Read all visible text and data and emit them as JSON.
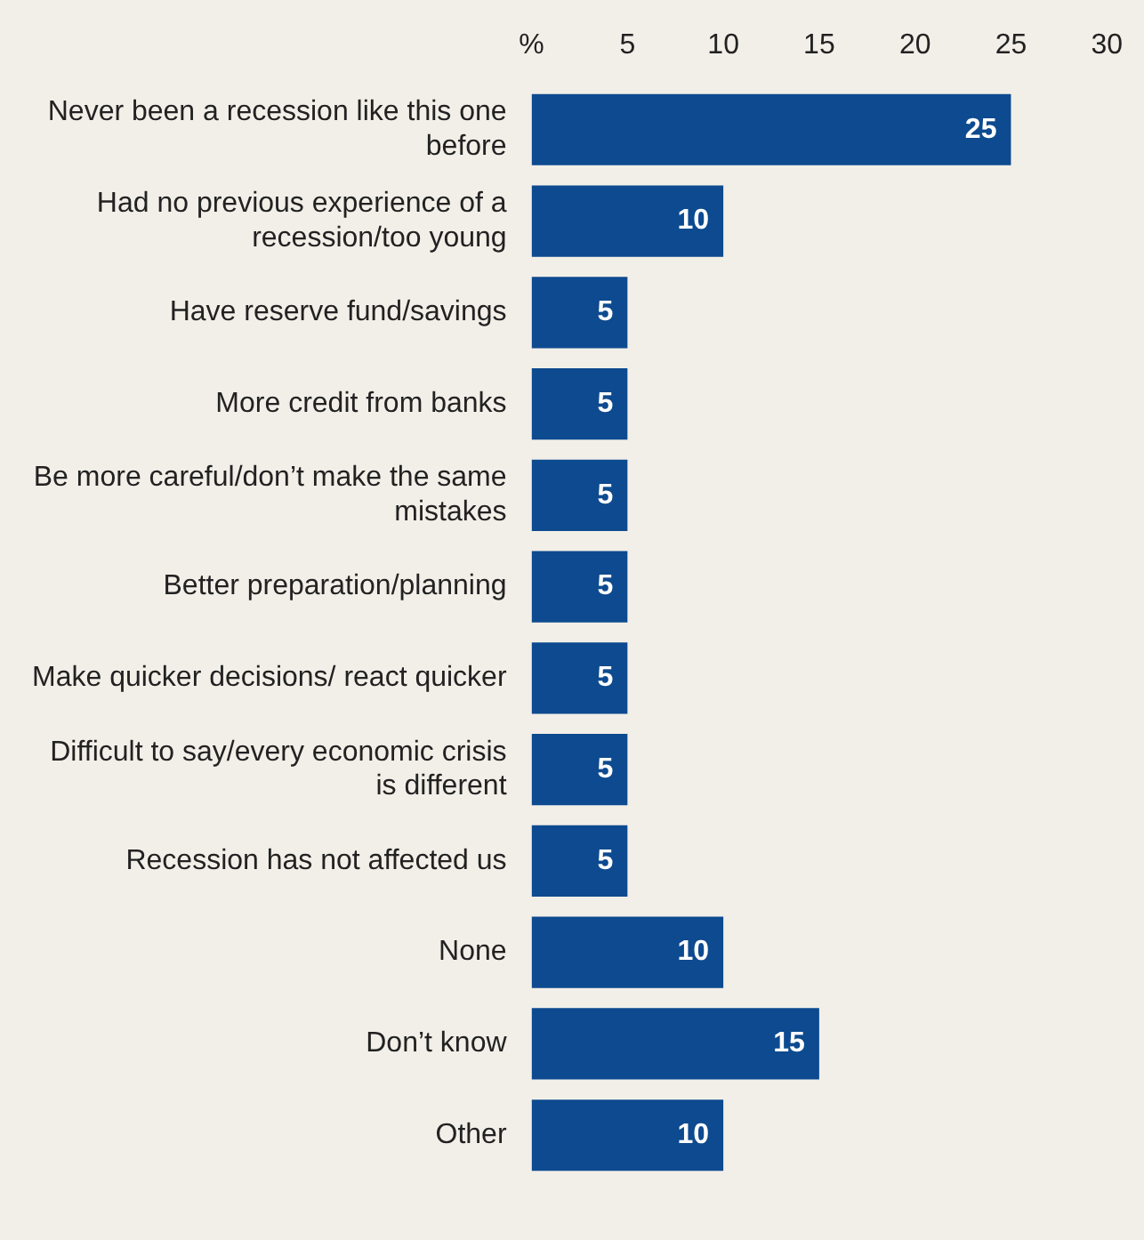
{
  "chart_data": {
    "type": "bar",
    "orientation": "horizontal",
    "categories": [
      "Never been a recession like this one before",
      "Had no previous experience of a recession/too young",
      "Have reserve fund/savings",
      "More credit from banks",
      "Be more careful/don’t make the same mistakes",
      "Better preparation/planning",
      "Make quicker decisions/ react quicker",
      "Difficult to say/every economic crisis is different",
      "Recession has not affected us",
      "None",
      "Don’t know",
      "Other"
    ],
    "values": [
      25,
      10,
      5,
      5,
      5,
      5,
      5,
      5,
      5,
      10,
      15,
      10
    ],
    "color": "#0d4a8f",
    "xlim": [
      0,
      30
    ],
    "xticks": [
      {
        "value": 0,
        "label": "%"
      },
      5,
      10,
      15,
      20,
      25,
      30
    ],
    "data_labels": true,
    "grid": false,
    "legend": false
  }
}
